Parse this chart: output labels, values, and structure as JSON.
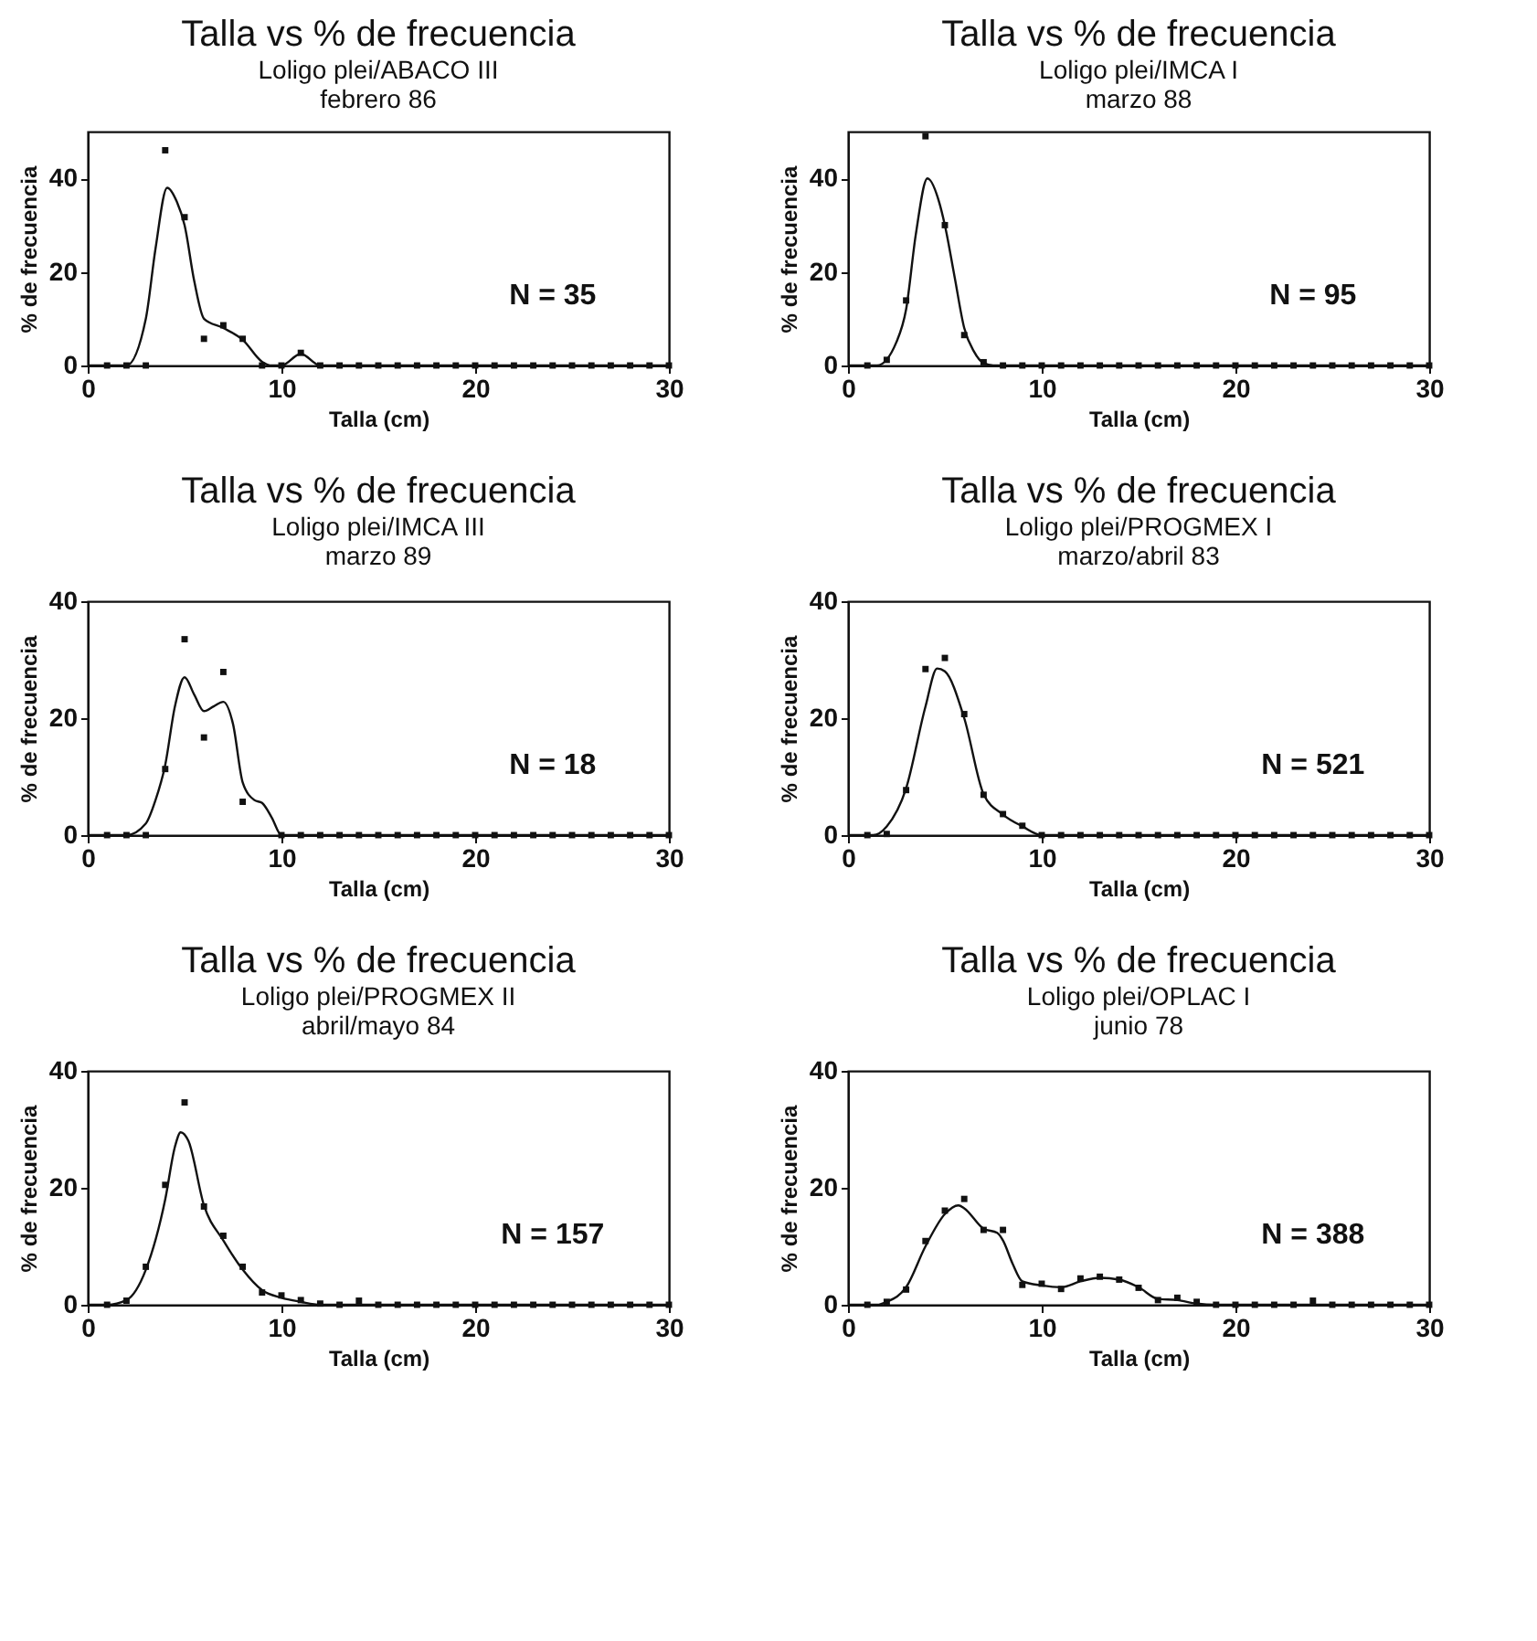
{
  "chart_data": [
    {
      "type": "scatter",
      "title": "Talla vs % de frecuencia",
      "subtitle": "Loligo plei/ABACO III\nfebrero 86",
      "xlabel": "Talla (cm)",
      "ylabel": "% de frecuencia",
      "annotations": [
        "N = 35"
      ],
      "xlim": [
        0,
        30
      ],
      "xticks": [
        0,
        10,
        20,
        30
      ],
      "ylim": [
        0,
        50
      ],
      "yticks": [
        0,
        20,
        40
      ],
      "marker": "square",
      "x": [
        1,
        2,
        3,
        4,
        5,
        6,
        7,
        8,
        9,
        10,
        11,
        12,
        13,
        14,
        15,
        16,
        17,
        18,
        19,
        20,
        21,
        22,
        23,
        24,
        25,
        26,
        27,
        28,
        29,
        30
      ],
      "series": [
        {
          "color": "#111111",
          "values": [
            0,
            0,
            0,
            46,
            31.7,
            5.7,
            8.6,
            5.7,
            0,
            0,
            2.7,
            0,
            0,
            0,
            0,
            0,
            0,
            0,
            0,
            0,
            0,
            0,
            0,
            0,
            0,
            0,
            0,
            0,
            0,
            0
          ]
        },
        {
          "type": "line",
          "marker": "none",
          "color": "#111111",
          "x": [
            0,
            2,
            3,
            3.5,
            4.1,
            4.6,
            5,
            5.5,
            6,
            7,
            8,
            9,
            9.5,
            10,
            11,
            12,
            30
          ],
          "values": [
            0,
            0,
            10,
            25,
            38,
            35,
            30,
            18,
            10,
            8,
            5.5,
            0.8,
            0,
            0,
            2.5,
            0,
            0
          ]
        }
      ]
    },
    {
      "type": "scatter",
      "title": "Talla vs % de frecuencia",
      "subtitle": "Loligo plei/IMCA I\nmarzo 88",
      "xlabel": "Talla (cm)",
      "ylabel": "% de frecuencia",
      "annotations": [
        "N = 95"
      ],
      "xlim": [
        0,
        30
      ],
      "xticks": [
        0,
        10,
        20,
        30
      ],
      "ylim": [
        0,
        50
      ],
      "yticks": [
        0,
        20,
        40
      ],
      "marker": "square",
      "x": [
        1,
        2,
        3,
        4,
        5,
        6,
        7,
        8,
        9,
        10,
        11,
        12,
        13,
        14,
        15,
        16,
        17,
        18,
        19,
        20,
        21,
        22,
        23,
        24,
        25,
        26,
        27,
        28,
        29,
        30
      ],
      "series": [
        {
          "color": "#111111",
          "values": [
            0,
            1.2,
            13.9,
            49,
            30,
            6.5,
            0.7,
            0,
            0,
            0,
            0,
            0,
            0,
            0,
            0,
            0,
            0,
            0,
            0,
            0,
            0,
            0,
            0,
            0,
            0,
            0,
            0,
            0,
            0,
            0
          ]
        },
        {
          "type": "line",
          "marker": "none",
          "color": "#111111",
          "x": [
            0,
            1.5,
            2.5,
            3,
            3.5,
            4.1,
            4.7,
            5,
            5.5,
            6,
            6.5,
            7,
            7.5,
            30
          ],
          "values": [
            0,
            0,
            5,
            12,
            28,
            40,
            35,
            30,
            19,
            8,
            3,
            0.5,
            0,
            0
          ]
        }
      ]
    },
    {
      "type": "scatter",
      "title": "Talla vs % de frecuencia",
      "subtitle": "Loligo plei/IMCA III\nmarzo 89",
      "xlabel": "Talla (cm)",
      "ylabel": "% de frecuencia",
      "annotations": [
        "N = 18"
      ],
      "xlim": [
        0,
        30
      ],
      "xticks": [
        0,
        10,
        20,
        30
      ],
      "ylim": [
        0,
        40
      ],
      "yticks": [
        0,
        20,
        40
      ],
      "marker": "square",
      "x": [
        1,
        2,
        3,
        4,
        5,
        6,
        7,
        8,
        9,
        10,
        11,
        12,
        13,
        14,
        15,
        16,
        17,
        18,
        19,
        20,
        21,
        22,
        23,
        24,
        25,
        26,
        27,
        28,
        29,
        30
      ],
      "series": [
        {
          "color": "#111111",
          "values": [
            0,
            0,
            0,
            11.3,
            33.5,
            16.7,
            27.9,
            5.7,
            null,
            0,
            0,
            0,
            0,
            0,
            0,
            0,
            0,
            0,
            0,
            0,
            0,
            0,
            0,
            0,
            0,
            0,
            0,
            0,
            0,
            0
          ]
        },
        {
          "type": "line",
          "marker": "none",
          "color": "#111111",
          "x": [
            0,
            2,
            3,
            3.5,
            4,
            4.5,
            5,
            5.5,
            6,
            6.5,
            7,
            7.5,
            8,
            8.6,
            9,
            9.5,
            10,
            30
          ],
          "values": [
            0,
            0,
            2,
            6,
            12,
            22,
            27,
            24,
            21.2,
            22,
            22.8,
            19,
            9,
            6,
            5.5,
            3,
            0,
            0
          ]
        }
      ]
    },
    {
      "type": "scatter",
      "title": "Talla vs % de frecuencia",
      "subtitle": "Loligo plei/PROGMEX I\nmarzo/abril 83",
      "xlabel": "Talla (cm)",
      "ylabel": "% de frecuencia",
      "annotations": [
        "N = 521"
      ],
      "xlim": [
        0,
        30
      ],
      "xticks": [
        0,
        10,
        20,
        30
      ],
      "ylim": [
        0,
        40
      ],
      "yticks": [
        0,
        20,
        40
      ],
      "marker": "square",
      "x": [
        1,
        2,
        3,
        4,
        5,
        6,
        7,
        8,
        9,
        10,
        11,
        12,
        13,
        14,
        15,
        16,
        17,
        18,
        19,
        20,
        21,
        22,
        23,
        24,
        25,
        26,
        27,
        28,
        29,
        30
      ],
      "series": [
        {
          "color": "#111111",
          "values": [
            0,
            0.2,
            7.7,
            28.4,
            30.3,
            20.7,
            6.9,
            3.6,
            1.6,
            0,
            0,
            0,
            0,
            0,
            0,
            0,
            0,
            0,
            0,
            0,
            0,
            0,
            0,
            0,
            0,
            0,
            0,
            0,
            0,
            0
          ]
        },
        {
          "type": "line",
          "marker": "none",
          "color": "#111111",
          "x": [
            0,
            1.3,
            2,
            3,
            4,
            4.6,
            5,
            6,
            7,
            8,
            9,
            10,
            30
          ],
          "values": [
            0,
            0,
            1.5,
            8,
            22,
            28.5,
            28,
            20,
            7,
            3.5,
            1.5,
            0,
            0
          ]
        }
      ]
    },
    {
      "type": "scatter",
      "title": "Talla vs % de frecuencia",
      "subtitle": "Loligo plei/PROGMEX II\nabril/mayo 84",
      "xlabel": "Talla (cm)",
      "ylabel": "% de frecuencia",
      "annotations": [
        "N = 157"
      ],
      "xlim": [
        0,
        30
      ],
      "xticks": [
        0,
        10,
        20,
        30
      ],
      "ylim": [
        0,
        40
      ],
      "yticks": [
        0,
        20,
        40
      ],
      "marker": "square",
      "x": [
        1,
        2,
        3,
        4,
        5,
        6,
        7,
        8,
        9,
        10,
        11,
        12,
        13,
        14,
        15,
        16,
        17,
        18,
        19,
        20,
        21,
        22,
        23,
        24,
        25,
        26,
        27,
        28,
        29,
        30
      ],
      "series": [
        {
          "color": "#111111",
          "values": [
            0,
            0.7,
            6.5,
            20.5,
            34.6,
            16.8,
            11.8,
            6.5,
            2.1,
            1.6,
            0.8,
            0.2,
            0,
            0.7,
            0,
            0,
            0,
            0,
            0,
            0,
            0,
            0,
            0,
            0,
            0,
            0,
            0,
            0,
            0,
            0
          ]
        },
        {
          "type": "line",
          "marker": "none",
          "color": "#111111",
          "x": [
            0,
            1,
            2,
            3,
            4,
            4.5,
            4.8,
            5.2,
            6,
            7,
            8,
            9,
            10,
            11,
            12,
            30
          ],
          "values": [
            0,
            0,
            0.8,
            6,
            18,
            27,
            29.5,
            28,
            17,
            11,
            6,
            2.5,
            1.2,
            0.5,
            0,
            0
          ]
        }
      ]
    },
    {
      "type": "scatter",
      "title": "Talla vs % de frecuencia",
      "subtitle": "Loligo plei/OPLAC I\njunio 78",
      "xlabel": "Talla (cm)",
      "ylabel": "% de frecuencia",
      "annotations": [
        "N = 388"
      ],
      "xlim": [
        0,
        30
      ],
      "xticks": [
        0,
        10,
        20,
        30
      ],
      "ylim": [
        0,
        40
      ],
      "yticks": [
        0,
        20,
        40
      ],
      "marker": "square",
      "x": [
        1,
        2,
        3,
        4,
        5,
        6,
        7,
        8,
        9,
        10,
        11,
        12,
        13,
        14,
        15,
        16,
        17,
        18,
        19,
        20,
        21,
        22,
        23,
        24,
        25,
        26,
        27,
        28,
        29,
        30
      ],
      "series": [
        {
          "color": "#111111",
          "values": [
            0,
            0.5,
            2.6,
            10.9,
            16.1,
            18.1,
            12.8,
            12.8,
            3.4,
            3.6,
            2.7,
            4.5,
            4.8,
            4.3,
            2.9,
            0.8,
            1.2,
            0.5,
            0,
            0,
            0,
            0,
            0,
            0.7,
            0,
            0,
            0,
            0,
            0,
            0
          ]
        },
        {
          "type": "line",
          "marker": "none",
          "color": "#111111",
          "x": [
            0,
            1.5,
            2,
            3,
            4,
            5,
            5.7,
            6,
            7,
            7.7,
            8,
            8.5,
            9,
            10,
            11,
            12,
            13,
            14,
            15,
            16,
            17,
            18,
            19,
            30
          ],
          "values": [
            0,
            0,
            0.5,
            3,
            10,
            15.5,
            17,
            16.5,
            13,
            12.3,
            11,
            7,
            4,
            3.3,
            3,
            4,
            4.6,
            4.3,
            3,
            1,
            0.8,
            0.2,
            0,
            0
          ]
        }
      ]
    }
  ]
}
